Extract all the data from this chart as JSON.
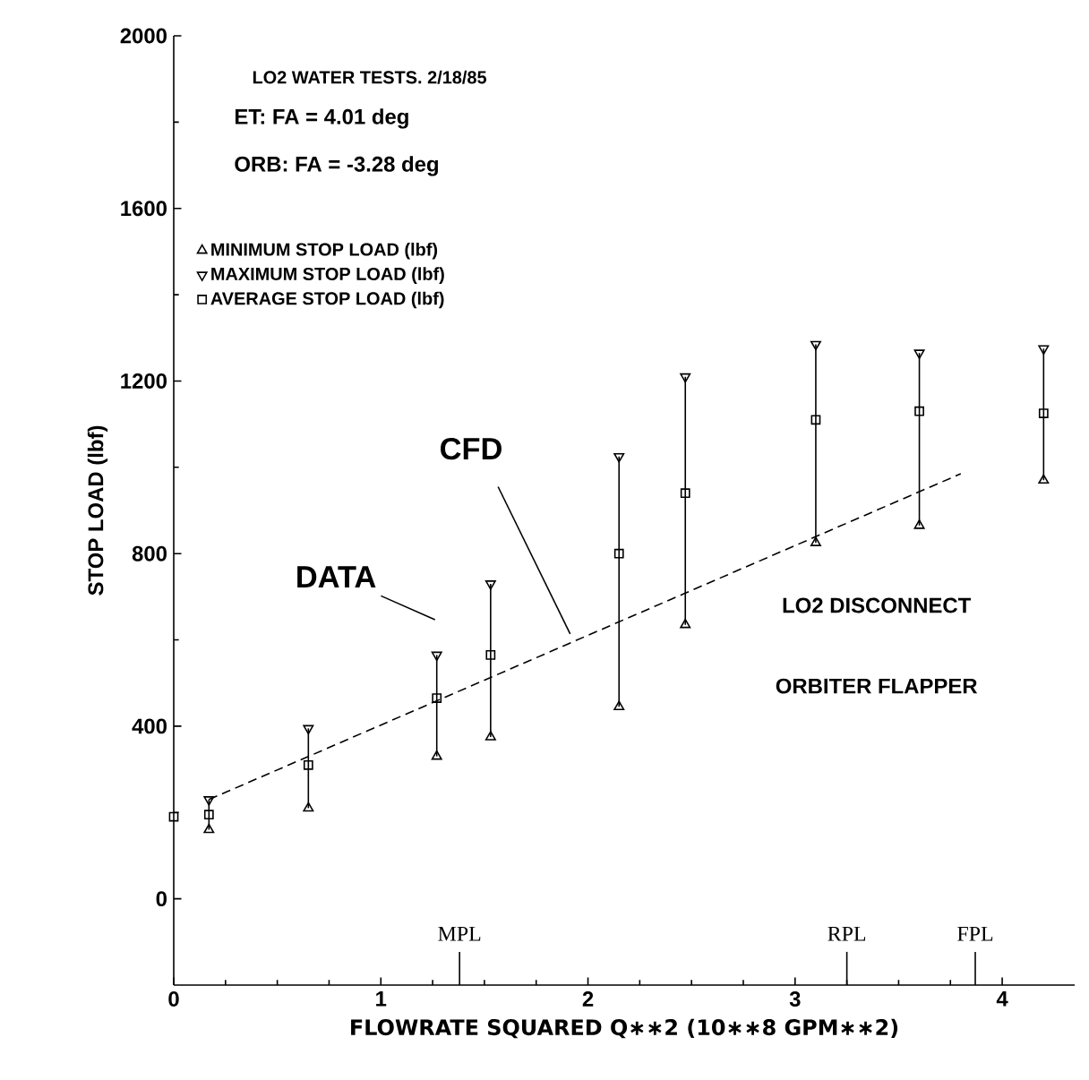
{
  "chart_data": {
    "type": "scatter",
    "title": "LO2 WATER TESTS. 2/18/85",
    "xlabel": "FLOWRATE SQUARED Q∗∗2 (10∗∗8 GPM∗∗2)",
    "ylabel": "STOP  LOAD (lbf)",
    "x": [
      0,
      0.17,
      0.65,
      1.27,
      1.53,
      2.15,
      2.47,
      3.1,
      3.6,
      4.2
    ],
    "series": [
      {
        "name": "MINIMUM    STOP LOAD (lbf)",
        "color": "#000000",
        "marker": "triangle",
        "values": [
          null,
          160,
          210,
          330,
          375,
          445,
          635,
          825,
          865,
          970
        ]
      },
      {
        "name": "MAXIMUM    STOP LOAD (lbf)",
        "color": "#000000",
        "marker": "triangle-down",
        "values": [
          null,
          230,
          395,
          565,
          730,
          1025,
          1210,
          1285,
          1265,
          1275
        ]
      },
      {
        "name": "AVERAGE    STOP LOAD (lbf)",
        "color": "#000000",
        "marker": "square",
        "values": [
          190,
          195,
          310,
          465,
          565,
          800,
          940,
          1110,
          1130,
          1125
        ],
        "errors": [
          null,
          [
            160,
            230
          ],
          [
            210,
            395
          ],
          [
            330,
            565
          ],
          [
            375,
            730
          ],
          [
            445,
            1025
          ],
          [
            635,
            1210
          ],
          [
            825,
            1285
          ],
          [
            865,
            1265
          ],
          [
            970,
            1275
          ]
        ]
      },
      {
        "type": "line",
        "color": "#000000",
        "line_style": "dashed",
        "marker": "none",
        "x": [
          0.17,
          3.8
        ],
        "values": [
          230,
          985
        ]
      }
    ],
    "xlim": [
      0,
      4.35
    ],
    "ylim": [
      -200,
      2000
    ],
    "xticks": [
      0,
      1,
      2,
      3,
      4
    ],
    "yticks": [
      0,
      400,
      800,
      1200,
      1600,
      2000
    ],
    "grid": false,
    "legend": "top left",
    "ref_lines": [
      {
        "axis": "x",
        "value": 1.38,
        "label": "MPL"
      },
      {
        "axis": "x",
        "value": 3.25,
        "label": "RPL"
      },
      {
        "axis": "x",
        "value": 3.87,
        "label": "FPL"
      }
    ],
    "annotations": [
      "ET:   FA = 4.01  deg",
      "ORB:  FA = -3.28  deg",
      "LO2 DISCONNECT",
      "ORBITER FLAPPER",
      "CFD",
      "DATA"
    ]
  }
}
